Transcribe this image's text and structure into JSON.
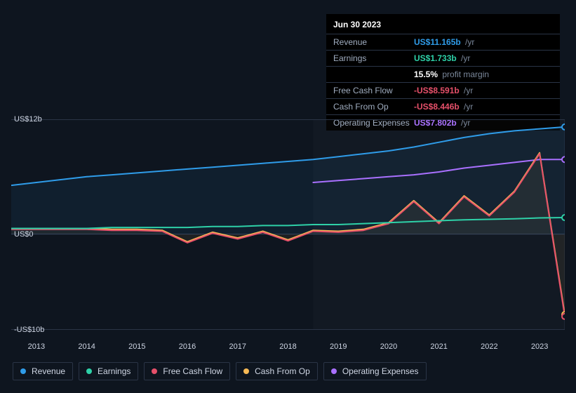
{
  "background_color": "#0e151f",
  "tooltip": {
    "date": "Jun 30 2023",
    "rows": [
      {
        "label": "Revenue",
        "value": "US$11.165b",
        "suffix": "/yr",
        "value_color": "#2f9ce9"
      },
      {
        "label": "Earnings",
        "value": "US$1.733b",
        "suffix": "/yr",
        "value_color": "#2ed1a8"
      },
      {
        "label": "",
        "value": "15.5%",
        "suffix": "profit margin",
        "value_color": "#ffffff"
      },
      {
        "label": "Free Cash Flow",
        "value": "-US$8.591b",
        "suffix": "/yr",
        "value_color": "#e6506a"
      },
      {
        "label": "Cash From Op",
        "value": "-US$8.446b",
        "suffix": "/yr",
        "value_color": "#e6506a"
      },
      {
        "label": "Operating Expenses",
        "value": "US$7.802b",
        "suffix": "/yr",
        "value_color": "#a970ff"
      }
    ]
  },
  "chart": {
    "type": "line",
    "ylim": [
      -10,
      12
    ],
    "y_ticks": [
      {
        "v": 0,
        "label": "US$0"
      },
      {
        "v": 12,
        "label": "US$12b"
      },
      {
        "v": -10,
        "label": "-US$10b"
      }
    ],
    "shade_from_year": 2018.5,
    "years": [
      2012.5,
      2013,
      2013.5,
      2014,
      2014.5,
      2015,
      2015.5,
      2016,
      2016.5,
      2017,
      2017.5,
      2018,
      2018.5,
      2019,
      2019.5,
      2020,
      2020.5,
      2021,
      2021.5,
      2022,
      2022.5,
      2023,
      2023.5
    ],
    "x_labels": [
      2013,
      2014,
      2015,
      2016,
      2017,
      2018,
      2019,
      2020,
      2021,
      2022,
      2023
    ],
    "cursor_year": 2023.5,
    "series": [
      {
        "name": "Revenue",
        "color": "#2f9ce9",
        "area": true,
        "area_opacity": 0.08,
        "line_width": 2,
        "values": [
          5.1,
          5.4,
          5.7,
          6.0,
          6.2,
          6.4,
          6.6,
          6.8,
          7.0,
          7.2,
          7.4,
          7.6,
          7.8,
          8.1,
          8.4,
          8.7,
          9.1,
          9.6,
          10.1,
          10.5,
          10.8,
          11.0,
          11.2
        ]
      },
      {
        "name": "Operating Expenses",
        "color": "#a970ff",
        "area": false,
        "line_width": 2,
        "values": [
          null,
          null,
          null,
          null,
          null,
          null,
          null,
          null,
          null,
          null,
          null,
          null,
          5.4,
          5.6,
          5.8,
          6.0,
          6.2,
          6.5,
          6.9,
          7.2,
          7.5,
          7.8,
          7.8
        ]
      },
      {
        "name": "Cash From Op",
        "color": "#f7b955",
        "area": true,
        "area_opacity": 0.07,
        "line_width": 2,
        "values": [
          0.6,
          0.6,
          0.6,
          0.6,
          0.5,
          0.5,
          0.4,
          -0.8,
          0.2,
          -0.4,
          0.3,
          -0.6,
          0.4,
          0.3,
          0.5,
          1.2,
          3.5,
          1.2,
          4.0,
          2.0,
          4.5,
          8.5,
          -8.4
        ]
      },
      {
        "name": "Free Cash Flow",
        "color": "#e6506a",
        "area": false,
        "line_width": 2,
        "values": [
          0.5,
          0.5,
          0.5,
          0.5,
          0.4,
          0.4,
          0.3,
          -0.9,
          0.1,
          -0.5,
          0.2,
          -0.7,
          0.3,
          0.2,
          0.4,
          1.1,
          3.4,
          1.1,
          3.9,
          1.9,
          4.4,
          8.4,
          -8.6
        ]
      },
      {
        "name": "Earnings",
        "color": "#2ed1a8",
        "area": false,
        "line_width": 2,
        "values": [
          0.6,
          0.6,
          0.6,
          0.6,
          0.7,
          0.7,
          0.7,
          0.7,
          0.8,
          0.8,
          0.9,
          0.9,
          1.0,
          1.0,
          1.1,
          1.2,
          1.3,
          1.4,
          1.5,
          1.55,
          1.6,
          1.7,
          1.73
        ]
      }
    ],
    "marker_radius": 4
  },
  "legend": {
    "items": [
      {
        "name": "Revenue",
        "color": "#2f9ce9"
      },
      {
        "name": "Earnings",
        "color": "#2ed1a8"
      },
      {
        "name": "Free Cash Flow",
        "color": "#e6506a"
      },
      {
        "name": "Cash From Op",
        "color": "#f7b955"
      },
      {
        "name": "Operating Expenses",
        "color": "#a970ff"
      }
    ]
  }
}
